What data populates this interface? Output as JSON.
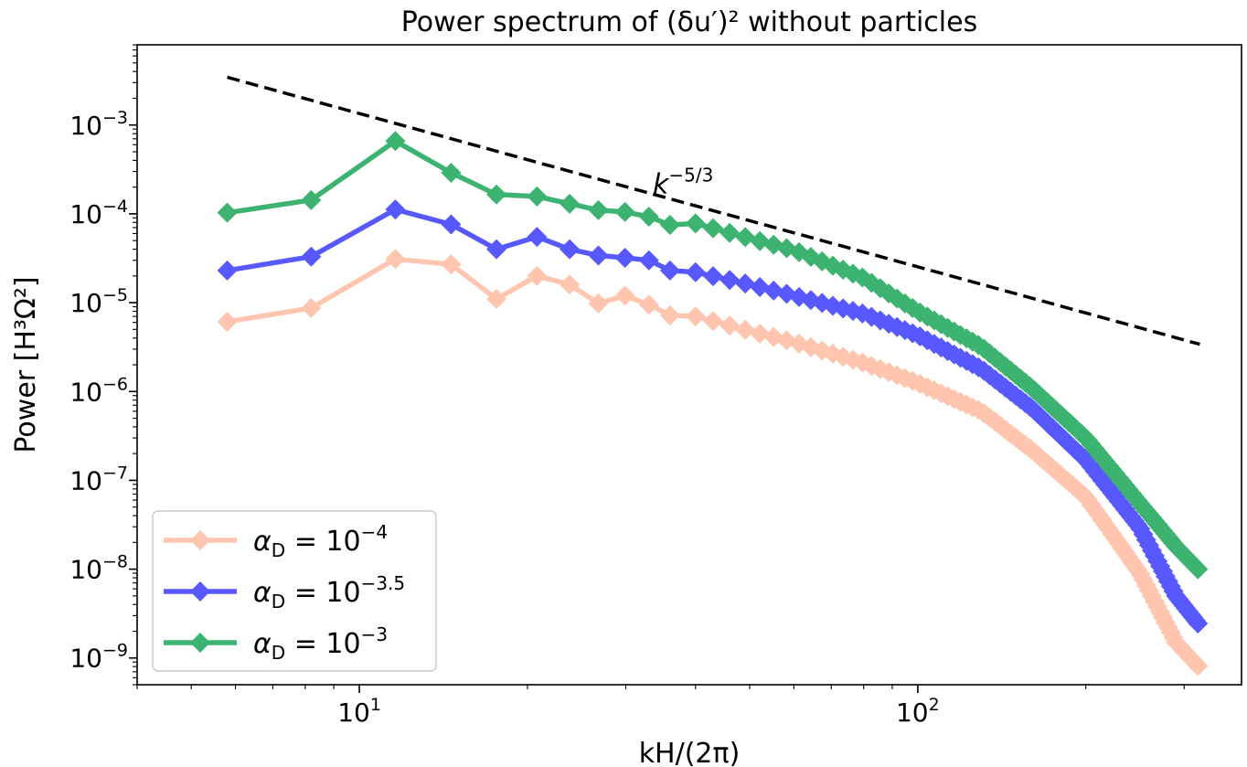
{
  "chart_data": {
    "type": "line",
    "title": "Power spectrum of (δu′)² without particles",
    "xlabel": "kH/(2π)",
    "ylabel": "Power [H³Ω²]",
    "xscale": "log",
    "yscale": "log",
    "xlim": [
      4.0,
      380
    ],
    "ylim": [
      5e-10,
      0.008
    ],
    "xticks": [
      {
        "value": 10,
        "mantissa": "10",
        "exp": "1"
      },
      {
        "value": 100,
        "mantissa": "10",
        "exp": "2"
      }
    ],
    "yticks": [
      {
        "value": 1e-09,
        "mantissa": "10",
        "exp": "−9"
      },
      {
        "value": 1e-08,
        "mantissa": "10",
        "exp": "−8"
      },
      {
        "value": 1e-07,
        "mantissa": "10",
        "exp": "−7"
      },
      {
        "value": 1e-06,
        "mantissa": "10",
        "exp": "−6"
      },
      {
        "value": 1e-05,
        "mantissa": "10",
        "exp": "−5"
      },
      {
        "value": 0.0001,
        "mantissa": "10",
        "exp": "−4"
      },
      {
        "value": 0.001,
        "mantissa": "10",
        "exp": "−3"
      }
    ],
    "grid": false,
    "legend_position": "lower-left",
    "reference_line": {
      "label_base": "k",
      "label_exp": "−5/3",
      "slope": -1.6667,
      "x": [
        5.8,
        320
      ],
      "y": [
        0.00345,
        3.4e-06
      ],
      "color": "#000000"
    },
    "series": [
      {
        "name_base": "α",
        "name_sub": "D",
        "name_value": " = 10",
        "name_exp": "−4",
        "color": "#FFA07A",
        "opacity": 0.6,
        "anchors": [
          [
            5.8,
            6.1e-06
          ],
          [
            8.2,
            8.7e-06
          ],
          [
            11.6,
            3.1e-05
          ],
          [
            14.6,
            2.7e-05
          ],
          [
            17.6,
            1.1e-05
          ],
          [
            20.8,
            2e-05
          ],
          [
            23.8,
            1.6e-05
          ],
          [
            26.8,
            9.8e-06
          ],
          [
            29.9,
            1.2e-05
          ],
          [
            33.0,
            9.5e-06
          ],
          [
            36.0,
            7.2e-06
          ],
          [
            40.0,
            7e-06
          ],
          [
            50.0,
            4.8e-06
          ],
          [
            60.0,
            3.6e-06
          ],
          [
            80.0,
            2.1e-06
          ],
          [
            100.0,
            1.25e-06
          ],
          [
            130.0,
            6e-07
          ],
          [
            160.0,
            2.2e-07
          ],
          [
            200.0,
            6.5e-08
          ],
          [
            250.0,
            9e-09
          ],
          [
            290.0,
            1.5e-09
          ],
          [
            320.0,
            7.7e-10
          ]
        ]
      },
      {
        "name_base": "α",
        "name_sub": "D",
        "name_value": " = 10",
        "name_exp": "−3.5",
        "color": "#0000FF",
        "opacity": 0.65,
        "anchors": [
          [
            5.8,
            2.3e-05
          ],
          [
            8.2,
            3.3e-05
          ],
          [
            11.6,
            0.000112
          ],
          [
            14.6,
            7.6e-05
          ],
          [
            17.6,
            4e-05
          ],
          [
            20.8,
            5.5e-05
          ],
          [
            23.8,
            4e-05
          ],
          [
            26.8,
            3.4e-05
          ],
          [
            29.9,
            3.2e-05
          ],
          [
            33.0,
            3e-05
          ],
          [
            36.0,
            2.3e-05
          ],
          [
            40.0,
            2.2e-05
          ],
          [
            50.0,
            1.6e-05
          ],
          [
            60.0,
            1.2e-05
          ],
          [
            80.0,
            7.5e-06
          ],
          [
            100.0,
            4.3e-06
          ],
          [
            130.0,
            1.8e-06
          ],
          [
            160.0,
            6.5e-07
          ],
          [
            200.0,
            1.7e-07
          ],
          [
            250.0,
            2.9e-08
          ],
          [
            290.0,
            5e-09
          ],
          [
            320.0,
            2.3e-09
          ]
        ]
      },
      {
        "name_base": "α",
        "name_sub": "D",
        "name_value": " = 10",
        "name_exp": "−3",
        "color": "#3CB371",
        "opacity": 1.0,
        "anchors": [
          [
            5.8,
            0.000103
          ],
          [
            8.2,
            0.000143
          ],
          [
            11.6,
            0.00066
          ],
          [
            14.6,
            0.00029
          ],
          [
            17.6,
            0.000165
          ],
          [
            20.8,
            0.000157
          ],
          [
            23.8,
            0.00013
          ],
          [
            26.8,
            0.00011
          ],
          [
            29.9,
            0.000105
          ],
          [
            33.0,
            9.3e-05
          ],
          [
            36.0,
            7.5e-05
          ],
          [
            40.0,
            7.8e-05
          ],
          [
            50.0,
            5.3e-05
          ],
          [
            60.0,
            3.9e-05
          ],
          [
            80.0,
            1.9e-05
          ],
          [
            100.0,
            8e-06
          ],
          [
            130.0,
            3.2e-06
          ],
          [
            160.0,
            1.1e-06
          ],
          [
            200.0,
            3e-07
          ],
          [
            250.0,
            5.5e-08
          ],
          [
            290.0,
            1.8e-08
          ],
          [
            320.0,
            9.5e-09
          ]
        ]
      }
    ]
  }
}
